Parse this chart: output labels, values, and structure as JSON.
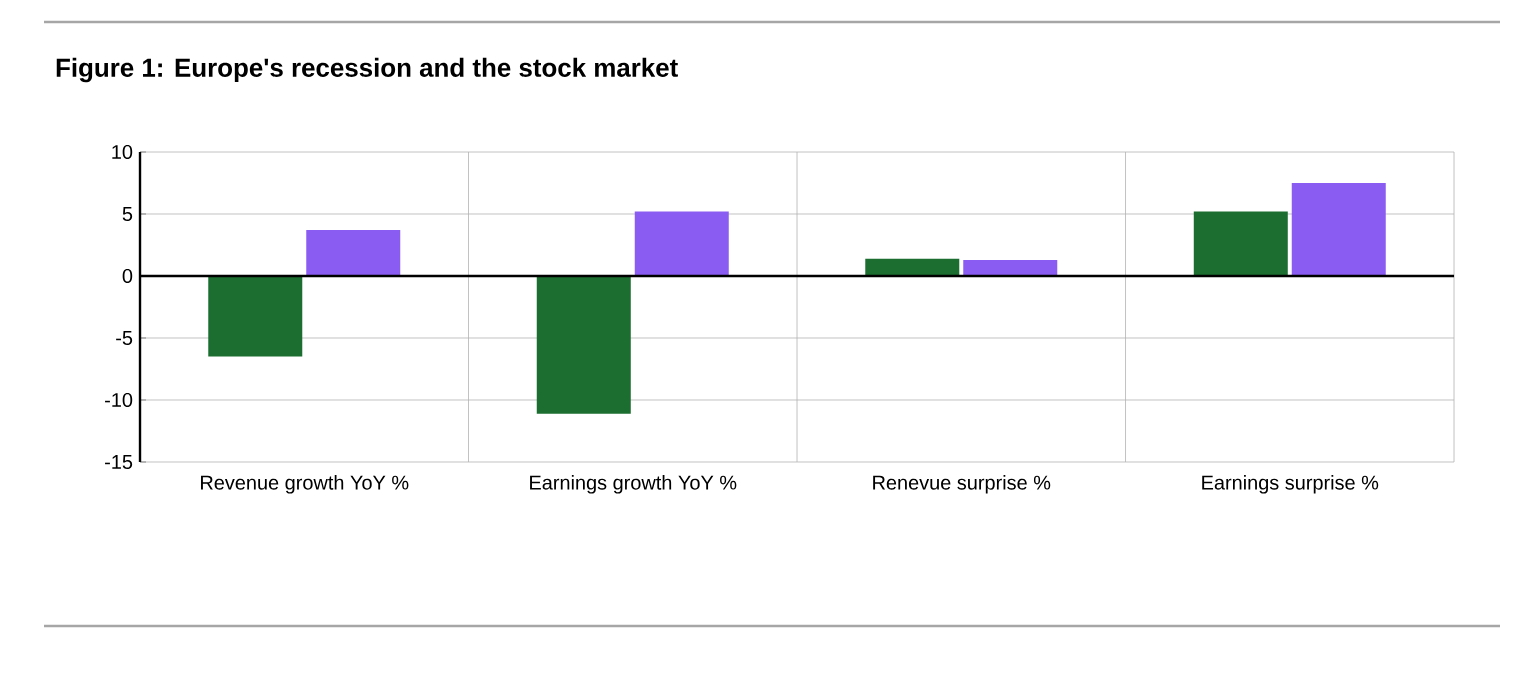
{
  "chart_data": {
    "type": "bar",
    "title": "Figure 1: Europe's recession and the stock market",
    "categories": [
      "Revenue growth YoY %",
      "Earnings growth YoY %",
      "Renevue surprise %",
      "Earnings surprise %"
    ],
    "series": [
      {
        "color": "#1b6e2f",
        "values": [
          -6.5,
          -11.1,
          1.4,
          5.2
        ]
      },
      {
        "color": "#8b5cf2",
        "values": [
          3.7,
          5.2,
          1.3,
          7.5
        ]
      }
    ],
    "ylim": [
      -15,
      10
    ],
    "yticks": [
      -15,
      -10,
      -5,
      0,
      5,
      10
    ],
    "grid": true
  }
}
